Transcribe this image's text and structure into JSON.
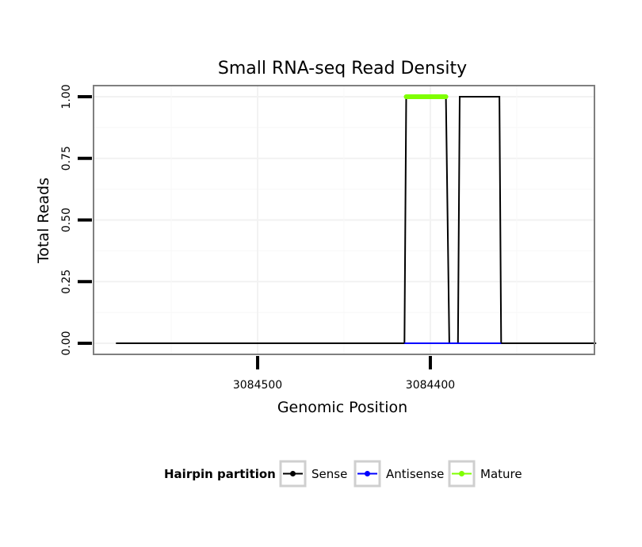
{
  "chart_data": {
    "type": "line",
    "title": "Small RNA-seq Read Density",
    "xlabel": "Genomic Position",
    "ylabel": "Total Reads",
    "x_reversed": true,
    "xlim": [
      3084595,
      3084305
    ],
    "ylim": [
      -0.045,
      1.045
    ],
    "x_ticks": [
      3084500,
      3084400
    ],
    "x_tick_labels": [
      "3084500",
      "3084400"
    ],
    "y_ticks": [
      0,
      0.25,
      0.5,
      0.75,
      1
    ],
    "y_tick_labels": [
      "0.00",
      "0.25",
      "0.50",
      "0.75",
      "1.00"
    ],
    "grid": true,
    "legend": {
      "title": "Hairpin partition",
      "position": "bottom",
      "entries": [
        {
          "label": "Sense",
          "color": "#000000"
        },
        {
          "label": "Antisense",
          "color": "#0000ff"
        },
        {
          "label": "Mature",
          "color": "#7fff00"
        }
      ]
    },
    "series": [
      {
        "name": "Sense",
        "color": "#000000",
        "x": [
          3084582,
          3084415,
          3084414,
          3084391,
          3084389,
          3084384,
          3084383,
          3084360,
          3084359,
          3084304
        ],
        "y": [
          0,
          0,
          1,
          1,
          0,
          0,
          1,
          1,
          0,
          0
        ]
      },
      {
        "name": "Antisense",
        "color": "#0000ff",
        "x": [
          3084415,
          3084359
        ],
        "y": [
          0,
          0
        ]
      },
      {
        "name": "Mature",
        "color": "#7fff00",
        "x": [
          3084414,
          3084391
        ],
        "y": [
          1,
          1
        ]
      }
    ]
  }
}
